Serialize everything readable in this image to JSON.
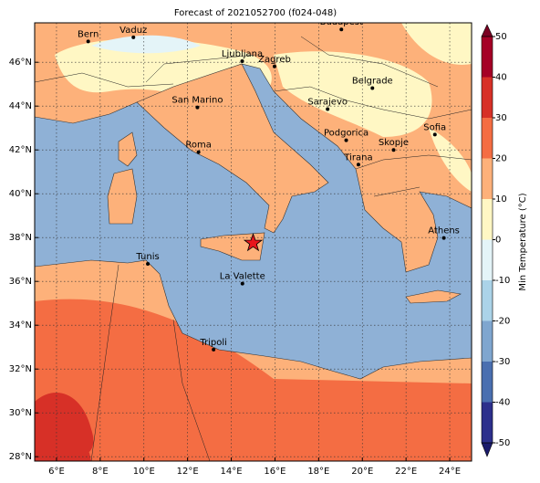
{
  "title": "Forecast of 2021052700 (f024-048)",
  "map": {
    "lon_lim": [
      5,
      25
    ],
    "lat_lim": [
      27.8,
      47.8
    ],
    "lon_ticks": [
      {
        "value": 6,
        "label": "6°E"
      },
      {
        "value": 8,
        "label": "8°E"
      },
      {
        "value": 10,
        "label": "10°E"
      },
      {
        "value": 12,
        "label": "12°E"
      },
      {
        "value": 14,
        "label": "14°E"
      },
      {
        "value": 16,
        "label": "16°E"
      },
      {
        "value": 18,
        "label": "18°E"
      },
      {
        "value": 20,
        "label": "20°E"
      },
      {
        "value": 22,
        "label": "22°E"
      },
      {
        "value": 24,
        "label": "24°E"
      }
    ],
    "lat_ticks": [
      {
        "value": 28,
        "label": "28°N"
      },
      {
        "value": 30,
        "label": "30°N"
      },
      {
        "value": 32,
        "label": "32°N"
      },
      {
        "value": 34,
        "label": "34°N"
      },
      {
        "value": 36,
        "label": "36°N"
      },
      {
        "value": 38,
        "label": "38°N"
      },
      {
        "value": 40,
        "label": "40°N"
      },
      {
        "value": 42,
        "label": "42°N"
      },
      {
        "value": 44,
        "label": "44°N"
      },
      {
        "value": 46,
        "label": "46°N"
      }
    ],
    "cities": [
      {
        "name": "Bern",
        "lon": 7.45,
        "lat": 46.95
      },
      {
        "name": "Vaduz",
        "lon": 9.52,
        "lat": 47.14
      },
      {
        "name": "Budapest",
        "lon": 19.04,
        "lat": 47.5
      },
      {
        "name": "Ljubljana",
        "lon": 14.5,
        "lat": 46.05
      },
      {
        "name": "Zagreb",
        "lon": 15.98,
        "lat": 45.81
      },
      {
        "name": "Belgrade",
        "lon": 20.46,
        "lat": 44.82
      },
      {
        "name": "San Marino",
        "lon": 12.45,
        "lat": 43.94
      },
      {
        "name": "Sarajevo",
        "lon": 18.41,
        "lat": 43.86
      },
      {
        "name": "Sofia",
        "lon": 23.32,
        "lat": 42.7
      },
      {
        "name": "Podgorica",
        "lon": 19.26,
        "lat": 42.44
      },
      {
        "name": "Skopje",
        "lon": 21.43,
        "lat": 42.0
      },
      {
        "name": "Roma",
        "lon": 12.5,
        "lat": 41.9
      },
      {
        "name": "Tirana",
        "lon": 19.82,
        "lat": 41.33
      },
      {
        "name": "Athens",
        "lon": 23.73,
        "lat": 37.98
      },
      {
        "name": "Tunis",
        "lon": 10.18,
        "lat": 36.8
      },
      {
        "name": "La Valette",
        "lon": 14.51,
        "lat": 35.9
      },
      {
        "name": "Tripoli",
        "lon": 13.19,
        "lat": 32.89
      }
    ],
    "marker": {
      "lon": 15.0,
      "lat": 37.75
    }
  },
  "colorbar": {
    "label": "Min Temperature (°C)",
    "lim": [
      -50,
      50
    ],
    "ticks": [
      -50,
      -40,
      -30,
      -20,
      -10,
      0,
      10,
      20,
      30,
      40,
      50
    ],
    "colors": [
      "#2c2f8c",
      "#4a6fb0",
      "#7fa6cf",
      "#abd3e8",
      "#e4f4f8",
      "#fff7c4",
      "#fdb17a",
      "#f46d43",
      "#d73027",
      "#a50026"
    ],
    "extend_colors": [
      "#1a1a6b",
      "#7a0022"
    ]
  }
}
